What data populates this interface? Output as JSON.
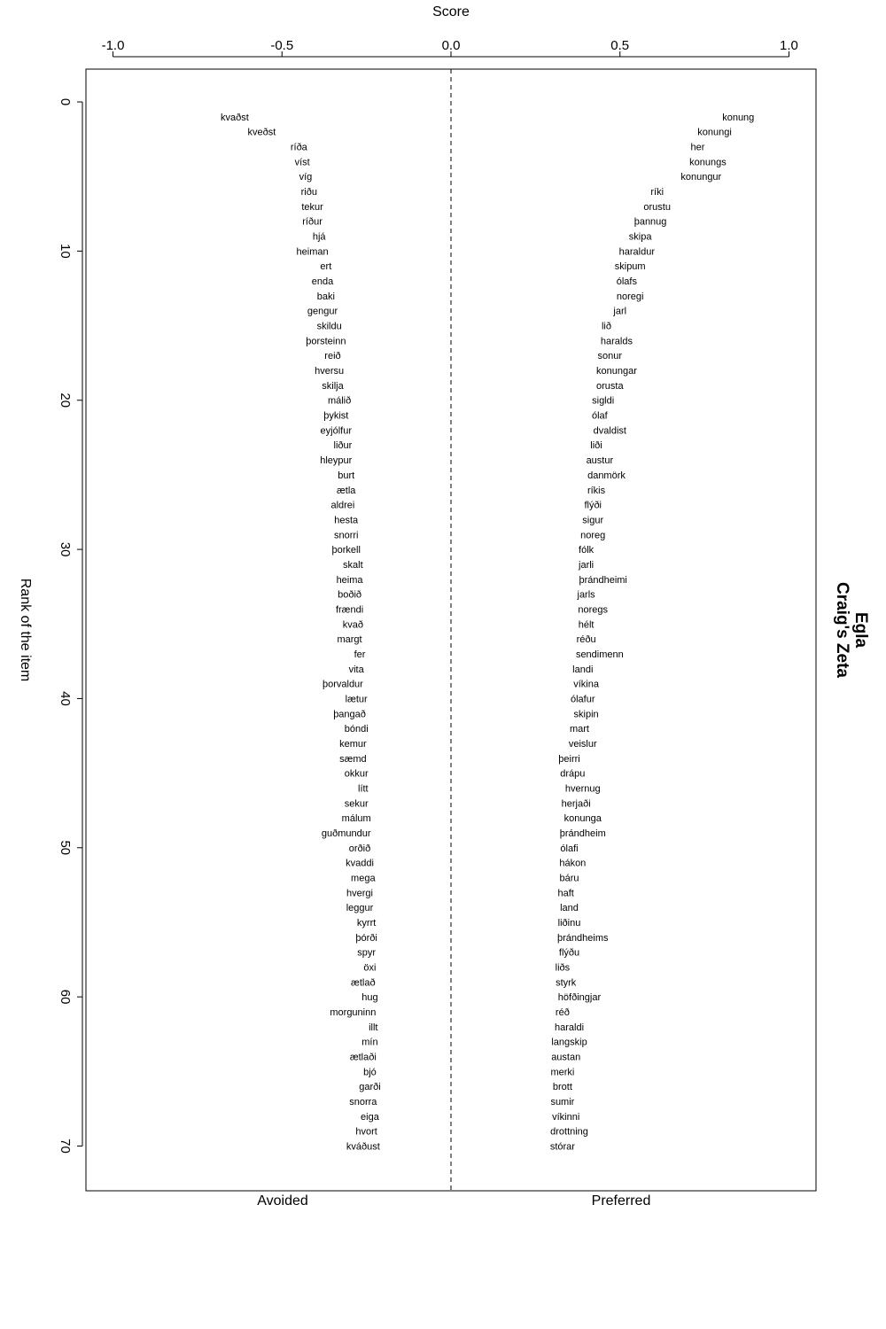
{
  "chart_data": {
    "type": "scatter",
    "title": "Egla",
    "subtitle": "Craig's Zeta",
    "xlabel": "Score",
    "ylabel": "Rank of the item",
    "xlim": [
      -1.08,
      1.08
    ],
    "ylim": [
      73,
      -2.2
    ],
    "x_ticks": [
      -1.0,
      -0.5,
      0.0,
      0.5,
      1.0
    ],
    "x_tick_labels": [
      "-1.0",
      "-0.5",
      "0.0",
      "0.5",
      "1.0"
    ],
    "y_ticks": [
      0,
      10,
      20,
      30,
      40,
      50,
      60,
      70
    ],
    "y_tick_labels": [
      "0",
      "10",
      "20",
      "30",
      "40",
      "50",
      "60",
      "70"
    ],
    "reference_line_x": 0.0,
    "bottom_labels": {
      "left": "Avoided",
      "right": "Preferred"
    },
    "grid": false,
    "series": [
      {
        "name": "Avoided",
        "points": [
          {
            "rank": 1,
            "score": -0.64,
            "label": "kvaðst"
          },
          {
            "rank": 2,
            "score": -0.56,
            "label": "kveðst"
          },
          {
            "rank": 3,
            "score": -0.45,
            "label": "ríða"
          },
          {
            "rank": 4,
            "score": -0.44,
            "label": "víst"
          },
          {
            "rank": 5,
            "score": -0.43,
            "label": "víg"
          },
          {
            "rank": 6,
            "score": -0.42,
            "label": "riðu"
          },
          {
            "rank": 7,
            "score": -0.41,
            "label": "tekur"
          },
          {
            "rank": 8,
            "score": -0.41,
            "label": "ríður"
          },
          {
            "rank": 9,
            "score": -0.39,
            "label": "hjá"
          },
          {
            "rank": 10,
            "score": -0.41,
            "label": "heiman"
          },
          {
            "rank": 11,
            "score": -0.37,
            "label": "ert"
          },
          {
            "rank": 12,
            "score": -0.38,
            "label": "enda"
          },
          {
            "rank": 13,
            "score": -0.37,
            "label": "baki"
          },
          {
            "rank": 14,
            "score": -0.38,
            "label": "gengur"
          },
          {
            "rank": 15,
            "score": -0.36,
            "label": "skildu"
          },
          {
            "rank": 16,
            "score": -0.37,
            "label": "þorsteinn"
          },
          {
            "rank": 17,
            "score": -0.35,
            "label": "reið"
          },
          {
            "rank": 18,
            "score": -0.36,
            "label": "hversu"
          },
          {
            "rank": 19,
            "score": -0.35,
            "label": "skilja"
          },
          {
            "rank": 20,
            "score": -0.33,
            "label": "málið"
          },
          {
            "rank": 21,
            "score": -0.34,
            "label": "þykist"
          },
          {
            "rank": 22,
            "score": -0.34,
            "label": "eyjólfur"
          },
          {
            "rank": 23,
            "score": -0.32,
            "label": "liður"
          },
          {
            "rank": 24,
            "score": -0.34,
            "label": "hleypur"
          },
          {
            "rank": 25,
            "score": -0.31,
            "label": "burt"
          },
          {
            "rank": 26,
            "score": -0.31,
            "label": "ætla"
          },
          {
            "rank": 27,
            "score": -0.32,
            "label": "aldrei"
          },
          {
            "rank": 28,
            "score": -0.31,
            "label": "hesta"
          },
          {
            "rank": 29,
            "score": -0.31,
            "label": "snorri"
          },
          {
            "rank": 30,
            "score": -0.31,
            "label": "þorkell"
          },
          {
            "rank": 31,
            "score": -0.29,
            "label": "skalt"
          },
          {
            "rank": 32,
            "score": -0.3,
            "label": "heima"
          },
          {
            "rank": 33,
            "score": -0.3,
            "label": "boðið"
          },
          {
            "rank": 34,
            "score": -0.3,
            "label": "frændi"
          },
          {
            "rank": 35,
            "score": -0.29,
            "label": "kvað"
          },
          {
            "rank": 36,
            "score": -0.3,
            "label": "margt"
          },
          {
            "rank": 37,
            "score": -0.27,
            "label": "fer"
          },
          {
            "rank": 38,
            "score": -0.28,
            "label": "vita"
          },
          {
            "rank": 39,
            "score": -0.32,
            "label": "þorvaldur"
          },
          {
            "rank": 40,
            "score": -0.28,
            "label": "lætur"
          },
          {
            "rank": 41,
            "score": -0.3,
            "label": "þangað"
          },
          {
            "rank": 42,
            "score": -0.28,
            "label": "bóndi"
          },
          {
            "rank": 43,
            "score": -0.29,
            "label": "kemur"
          },
          {
            "rank": 44,
            "score": -0.29,
            "label": "sæmd"
          },
          {
            "rank": 45,
            "score": -0.28,
            "label": "okkur"
          },
          {
            "rank": 46,
            "score": -0.26,
            "label": "lítt"
          },
          {
            "rank": 47,
            "score": -0.28,
            "label": "sekur"
          },
          {
            "rank": 48,
            "score": -0.28,
            "label": "málum"
          },
          {
            "rank": 49,
            "score": -0.31,
            "label": "guðmundur"
          },
          {
            "rank": 50,
            "score": -0.27,
            "label": "orðið"
          },
          {
            "rank": 51,
            "score": -0.27,
            "label": "kvaddi"
          },
          {
            "rank": 52,
            "score": -0.26,
            "label": "mega"
          },
          {
            "rank": 53,
            "score": -0.27,
            "label": "hvergi"
          },
          {
            "rank": 54,
            "score": -0.27,
            "label": "leggur"
          },
          {
            "rank": 55,
            "score": -0.25,
            "label": "kyrrt"
          },
          {
            "rank": 56,
            "score": -0.25,
            "label": "þórði"
          },
          {
            "rank": 57,
            "score": -0.25,
            "label": "spyr"
          },
          {
            "rank": 58,
            "score": -0.24,
            "label": "öxi"
          },
          {
            "rank": 59,
            "score": -0.26,
            "label": "ætlað"
          },
          {
            "rank": 60,
            "score": -0.24,
            "label": "hug"
          },
          {
            "rank": 61,
            "score": -0.29,
            "label": "morguninn"
          },
          {
            "rank": 62,
            "score": -0.23,
            "label": "illt"
          },
          {
            "rank": 63,
            "score": -0.24,
            "label": "mín"
          },
          {
            "rank": 64,
            "score": -0.26,
            "label": "ætlaði"
          },
          {
            "rank": 65,
            "score": -0.24,
            "label": "bjó"
          },
          {
            "rank": 66,
            "score": -0.24,
            "label": "garði"
          },
          {
            "rank": 67,
            "score": -0.26,
            "label": "snorra"
          },
          {
            "rank": 68,
            "score": -0.24,
            "label": "eiga"
          },
          {
            "rank": 69,
            "score": -0.25,
            "label": "hvort"
          },
          {
            "rank": 70,
            "score": -0.26,
            "label": "kváðust"
          }
        ]
      },
      {
        "name": "Preferred",
        "points": [
          {
            "rank": 1,
            "score": 0.85,
            "label": "konung"
          },
          {
            "rank": 2,
            "score": 0.78,
            "label": "konungi"
          },
          {
            "rank": 3,
            "score": 0.73,
            "label": "her"
          },
          {
            "rank": 4,
            "score": 0.76,
            "label": "konungs"
          },
          {
            "rank": 5,
            "score": 0.74,
            "label": "konungur"
          },
          {
            "rank": 6,
            "score": 0.61,
            "label": "ríki"
          },
          {
            "rank": 7,
            "score": 0.61,
            "label": "orustu"
          },
          {
            "rank": 8,
            "score": 0.59,
            "label": "þannug"
          },
          {
            "rank": 9,
            "score": 0.56,
            "label": "skipa"
          },
          {
            "rank": 10,
            "score": 0.55,
            "label": "haraldur"
          },
          {
            "rank": 11,
            "score": 0.53,
            "label": "skipum"
          },
          {
            "rank": 12,
            "score": 0.52,
            "label": "ólafs"
          },
          {
            "rank": 13,
            "score": 0.53,
            "label": "noregi"
          },
          {
            "rank": 14,
            "score": 0.5,
            "label": "jarl"
          },
          {
            "rank": 15,
            "score": 0.46,
            "label": "lið"
          },
          {
            "rank": 16,
            "score": 0.49,
            "label": "haralds"
          },
          {
            "rank": 17,
            "score": 0.47,
            "label": "sonur"
          },
          {
            "rank": 18,
            "score": 0.49,
            "label": "konungar"
          },
          {
            "rank": 19,
            "score": 0.47,
            "label": "orusta"
          },
          {
            "rank": 20,
            "score": 0.45,
            "label": "sigldi"
          },
          {
            "rank": 21,
            "score": 0.44,
            "label": "ólaf"
          },
          {
            "rank": 22,
            "score": 0.47,
            "label": "dvaldist"
          },
          {
            "rank": 23,
            "score": 0.43,
            "label": "liði"
          },
          {
            "rank": 24,
            "score": 0.44,
            "label": "austur"
          },
          {
            "rank": 25,
            "score": 0.46,
            "label": "danmörk"
          },
          {
            "rank": 26,
            "score": 0.43,
            "label": "ríkis"
          },
          {
            "rank": 27,
            "score": 0.42,
            "label": "flýði"
          },
          {
            "rank": 28,
            "score": 0.42,
            "label": "sigur"
          },
          {
            "rank": 29,
            "score": 0.42,
            "label": "noreg"
          },
          {
            "rank": 30,
            "score": 0.4,
            "label": "fólk"
          },
          {
            "rank": 31,
            "score": 0.4,
            "label": "jarli"
          },
          {
            "rank": 32,
            "score": 0.45,
            "label": "þrándheimi"
          },
          {
            "rank": 33,
            "score": 0.4,
            "label": "jarls"
          },
          {
            "rank": 34,
            "score": 0.42,
            "label": "noregs"
          },
          {
            "rank": 35,
            "score": 0.4,
            "label": "hélt"
          },
          {
            "rank": 36,
            "score": 0.4,
            "label": "réðu"
          },
          {
            "rank": 37,
            "score": 0.44,
            "label": "sendimenn"
          },
          {
            "rank": 38,
            "score": 0.39,
            "label": "landi"
          },
          {
            "rank": 39,
            "score": 0.4,
            "label": "víkina"
          },
          {
            "rank": 40,
            "score": 0.39,
            "label": "ólafur"
          },
          {
            "rank": 41,
            "score": 0.4,
            "label": "skipin"
          },
          {
            "rank": 42,
            "score": 0.38,
            "label": "mart"
          },
          {
            "rank": 43,
            "score": 0.39,
            "label": "veislur"
          },
          {
            "rank": 44,
            "score": 0.35,
            "label": "þeirri"
          },
          {
            "rank": 45,
            "score": 0.36,
            "label": "drápu"
          },
          {
            "rank": 46,
            "score": 0.39,
            "label": "hvernug"
          },
          {
            "rank": 47,
            "score": 0.37,
            "label": "herjaði"
          },
          {
            "rank": 48,
            "score": 0.39,
            "label": "konunga"
          },
          {
            "rank": 49,
            "score": 0.39,
            "label": "þrándheim"
          },
          {
            "rank": 50,
            "score": 0.35,
            "label": "ólafi"
          },
          {
            "rank": 51,
            "score": 0.36,
            "label": "hákon"
          },
          {
            "rank": 52,
            "score": 0.35,
            "label": "báru"
          },
          {
            "rank": 53,
            "score": 0.34,
            "label": "haft"
          },
          {
            "rank": 54,
            "score": 0.35,
            "label": "land"
          },
          {
            "rank": 55,
            "score": 0.35,
            "label": "liðinu"
          },
          {
            "rank": 56,
            "score": 0.39,
            "label": "þrándheims"
          },
          {
            "rank": 57,
            "score": 0.35,
            "label": "flýðu"
          },
          {
            "rank": 58,
            "score": 0.33,
            "label": "liðs"
          },
          {
            "rank": 59,
            "score": 0.34,
            "label": "styrk"
          },
          {
            "rank": 60,
            "score": 0.38,
            "label": "höfðingjar"
          },
          {
            "rank": 61,
            "score": 0.33,
            "label": "réð"
          },
          {
            "rank": 62,
            "score": 0.35,
            "label": "haraldi"
          },
          {
            "rank": 63,
            "score": 0.35,
            "label": "langskip"
          },
          {
            "rank": 64,
            "score": 0.34,
            "label": "austan"
          },
          {
            "rank": 65,
            "score": 0.33,
            "label": "merki"
          },
          {
            "rank": 66,
            "score": 0.33,
            "label": "brott"
          },
          {
            "rank": 67,
            "score": 0.33,
            "label": "sumir"
          },
          {
            "rank": 68,
            "score": 0.34,
            "label": "víkinni"
          },
          {
            "rank": 69,
            "score": 0.35,
            "label": "drottning"
          },
          {
            "rank": 70,
            "score": 0.33,
            "label": "stórar"
          }
        ]
      }
    ]
  }
}
